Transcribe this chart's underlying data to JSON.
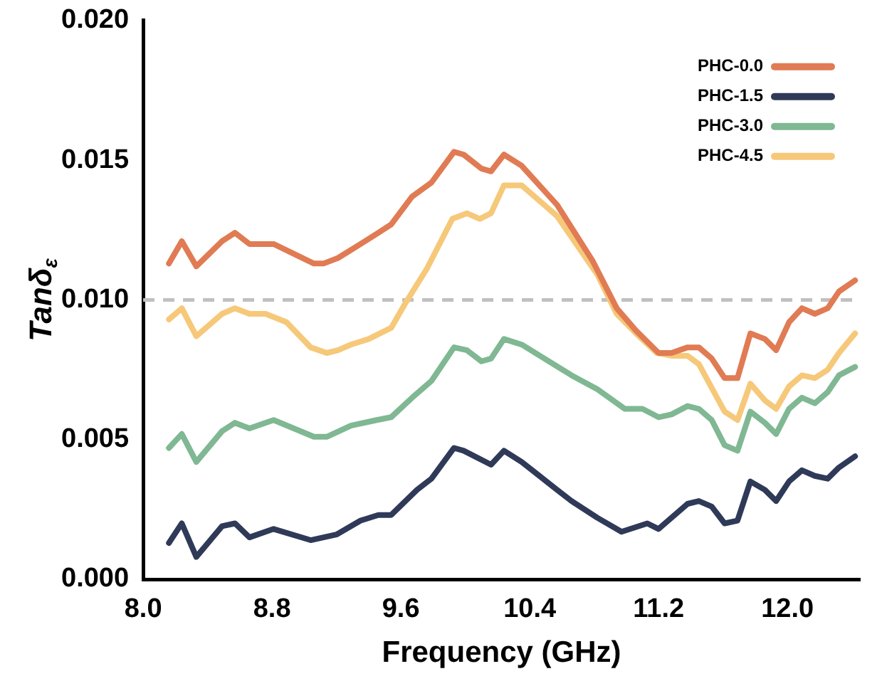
{
  "chart_data": {
    "type": "line",
    "xlabel": "Frequency (GHz)",
    "ylabel": "Tanδ$_{ε}$",
    "xlim": [
      8.0,
      12.45
    ],
    "xticks": [
      {
        "value": 8.0,
        "label": "8.0"
      },
      8.8,
      9.6,
      10.4,
      11.2,
      {
        "value": 12.0,
        "label": "12.0"
      }
    ],
    "ylim": [
      0,
      0.02
    ],
    "yticks": [
      {
        "value": 0,
        "label": "0.000"
      },
      {
        "value": 0.005,
        "label": "0.005"
      },
      {
        "value": 0.01,
        "label": "0.010"
      },
      {
        "value": 0.015,
        "label": "0.015"
      },
      {
        "value": 0.02,
        "label": "0.020"
      }
    ],
    "grid": false,
    "legend": "top right",
    "marker": "none",
    "line_style": "solid",
    "ref_lines": [
      {
        "axis": "y",
        "value": 0.01,
        "color": "#c0c0c0",
        "line_style": "dashed"
      }
    ],
    "series": [
      {
        "name": "PHC-0.0",
        "color": "#e07b54",
        "x": [
          8.16,
          8.24,
          8.33,
          8.49,
          8.57,
          8.66,
          8.81,
          9.06,
          9.12,
          9.21,
          9.35,
          9.46,
          9.54,
          9.67,
          9.79,
          9.93,
          9.99,
          10.1,
          10.16,
          10.24,
          10.35,
          10.57,
          10.79,
          10.94,
          11.06,
          11.2,
          11.28,
          11.38,
          11.45,
          11.53,
          11.61,
          11.69,
          11.77,
          11.86,
          11.93,
          12.01,
          12.09,
          12.17,
          12.25,
          12.32,
          12.42
        ],
        "values": [
          0.0113,
          0.0121,
          0.0112,
          0.0121,
          0.0124,
          0.012,
          0.012,
          0.0113,
          0.0113,
          0.0115,
          0.012,
          0.0124,
          0.0127,
          0.0137,
          0.0142,
          0.0153,
          0.0152,
          0.0147,
          0.0146,
          0.0152,
          0.0148,
          0.0134,
          0.0114,
          0.0097,
          0.0089,
          0.0081,
          0.0081,
          0.0083,
          0.0083,
          0.0079,
          0.0072,
          0.0072,
          0.0088,
          0.0086,
          0.0082,
          0.0092,
          0.0097,
          0.0095,
          0.0097,
          0.0103,
          0.0107
        ]
      },
      {
        "name": "PHC-1.5",
        "color": "#2f3a58",
        "x": [
          8.16,
          8.24,
          8.33,
          8.49,
          8.57,
          8.66,
          8.81,
          9.04,
          9.2,
          9.35,
          9.46,
          9.54,
          9.7,
          9.79,
          9.93,
          9.99,
          10.16,
          10.24,
          10.35,
          10.57,
          10.66,
          10.82,
          10.97,
          11.13,
          11.2,
          11.38,
          11.45,
          11.53,
          11.61,
          11.69,
          11.77,
          11.86,
          11.93,
          12.01,
          12.09,
          12.17,
          12.25,
          12.32,
          12.42
        ],
        "values": [
          0.0013,
          0.002,
          0.0008,
          0.0019,
          0.002,
          0.0015,
          0.0018,
          0.0014,
          0.0016,
          0.0021,
          0.0023,
          0.0023,
          0.0032,
          0.0036,
          0.0047,
          0.0046,
          0.0041,
          0.0046,
          0.0042,
          0.0032,
          0.0028,
          0.0022,
          0.0017,
          0.002,
          0.0018,
          0.0027,
          0.0028,
          0.0026,
          0.002,
          0.0021,
          0.0035,
          0.0032,
          0.0028,
          0.0035,
          0.0039,
          0.0037,
          0.0036,
          0.004,
          0.0044
        ]
      },
      {
        "name": "PHC-3.0",
        "color": "#7fb893",
        "x": [
          8.16,
          8.24,
          8.33,
          8.49,
          8.57,
          8.66,
          8.81,
          9.06,
          9.14,
          9.29,
          9.45,
          9.54,
          9.67,
          9.79,
          9.93,
          10.01,
          10.1,
          10.16,
          10.24,
          10.35,
          10.66,
          10.82,
          10.99,
          11.1,
          11.2,
          11.28,
          11.38,
          11.45,
          11.53,
          11.61,
          11.69,
          11.77,
          11.86,
          11.93,
          12.01,
          12.09,
          12.17,
          12.25,
          12.32,
          12.42
        ],
        "values": [
          0.0047,
          0.0052,
          0.0042,
          0.0053,
          0.0056,
          0.0054,
          0.0057,
          0.0051,
          0.0051,
          0.0055,
          0.0057,
          0.0058,
          0.0065,
          0.0071,
          0.0083,
          0.0082,
          0.0078,
          0.0079,
          0.0086,
          0.0084,
          0.0073,
          0.0068,
          0.0061,
          0.0061,
          0.0058,
          0.0059,
          0.0062,
          0.0061,
          0.0057,
          0.0048,
          0.0046,
          0.006,
          0.0056,
          0.0052,
          0.0061,
          0.0065,
          0.0063,
          0.0067,
          0.0073,
          0.0076
        ]
      },
      {
        "name": "PHC-4.5",
        "color": "#f6c879",
        "x": [
          8.16,
          8.24,
          8.33,
          8.49,
          8.57,
          8.66,
          8.76,
          8.89,
          9.04,
          9.14,
          9.21,
          9.29,
          9.4,
          9.54,
          9.63,
          9.76,
          9.92,
          10.01,
          10.09,
          10.16,
          10.24,
          10.35,
          10.57,
          10.82,
          10.94,
          11.06,
          11.19,
          11.28,
          11.38,
          11.45,
          11.61,
          11.69,
          11.77,
          11.86,
          11.93,
          12.01,
          12.09,
          12.17,
          12.25,
          12.32,
          12.42
        ],
        "values": [
          0.0093,
          0.0097,
          0.0087,
          0.0095,
          0.0097,
          0.0095,
          0.0095,
          0.0092,
          0.0083,
          0.0081,
          0.0082,
          0.0084,
          0.0086,
          0.009,
          0.0099,
          0.0111,
          0.0129,
          0.0131,
          0.0129,
          0.0131,
          0.0141,
          0.0141,
          0.013,
          0.0109,
          0.0095,
          0.0088,
          0.0081,
          0.008,
          0.008,
          0.0077,
          0.006,
          0.0057,
          0.007,
          0.0064,
          0.0061,
          0.0069,
          0.0073,
          0.0072,
          0.0075,
          0.0081,
          0.0088
        ]
      }
    ]
  }
}
